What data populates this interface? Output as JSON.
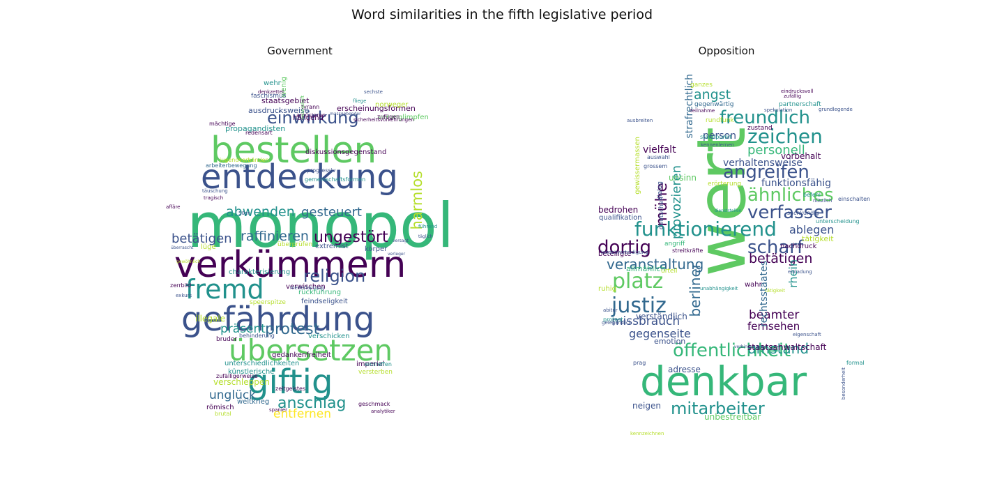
{
  "figure_title": "Word similarities in the fifth legislative period",
  "palette": {
    "c0": "#440154",
    "c1": "#3b528b",
    "c2": "#21918c",
    "c3": "#5ec962",
    "c4": "#fde725",
    "c5": "#31688e",
    "c6": "#35b779",
    "c7": "#b5de2b"
  },
  "chart_data": [
    {
      "type": "wordcloud",
      "title": "Government",
      "words": [
        {
          "text": "monopol",
          "c": "c6"
        },
        {
          "text": "verkümmern",
          "c": "c0"
        },
        {
          "text": "bestellen",
          "c": "c3"
        },
        {
          "text": "entdeckung",
          "c": "c1"
        },
        {
          "text": "gefährdung",
          "c": "c1"
        },
        {
          "text": "übersetzen",
          "c": "c3"
        },
        {
          "text": "giftig",
          "c": "c2"
        },
        {
          "text": "fremd",
          "c": "c2"
        },
        {
          "text": "einwirkung",
          "c": "c1"
        },
        {
          "text": "religion",
          "c": "c1"
        },
        {
          "text": "protest",
          "c": "c5"
        },
        {
          "text": "anschlag",
          "c": "c2"
        },
        {
          "text": "abwenden",
          "c": "c2"
        },
        {
          "text": "raffinieren",
          "c": "c5"
        },
        {
          "text": "ungestört",
          "c": "c0"
        },
        {
          "text": "harmlos",
          "c": "c7"
        },
        {
          "text": "gesteuert",
          "c": "c5"
        },
        {
          "text": "betätigen",
          "c": "c1"
        },
        {
          "text": "präsent",
          "c": "c2"
        },
        {
          "text": "entfernen",
          "c": "c4"
        },
        {
          "text": "unglück",
          "c": "c5"
        },
        {
          "text": "verschleppen",
          "c": "c7"
        },
        {
          "text": "staatsgebiet",
          "c": "c0"
        },
        {
          "text": "ausdrucksweise",
          "c": "c1"
        },
        {
          "text": "propagandisten",
          "c": "c2"
        },
        {
          "text": "diskussionsgegenstand",
          "c": "c0"
        },
        {
          "text": "erscheinungsformen",
          "c": "c0"
        },
        {
          "text": "charakterisierung",
          "c": "c2"
        },
        {
          "text": "gedankenfreiheit",
          "c": "c0"
        },
        {
          "text": "unterschiedlichkeiten",
          "c": "c2"
        },
        {
          "text": "künstlerische",
          "c": "c2"
        },
        {
          "text": "feindseligkeit",
          "c": "c1"
        },
        {
          "text": "rückführung",
          "c": "c6"
        },
        {
          "text": "verschicken",
          "c": "c2"
        },
        {
          "text": "imperial",
          "c": "c0"
        },
        {
          "text": "weltkrieg",
          "c": "c5"
        },
        {
          "text": "römisch",
          "c": "c0"
        },
        {
          "text": "zufälligerweise",
          "c": "c0"
        },
        {
          "text": "extremist",
          "c": "c1"
        },
        {
          "text": "körper",
          "c": "c1"
        },
        {
          "text": "verwischen",
          "c": "c0"
        },
        {
          "text": "illegale",
          "c": "c7"
        },
        {
          "text": "hängend",
          "c": "c0"
        },
        {
          "text": "norweger",
          "c": "c7"
        },
        {
          "text": "wehr",
          "c": "c2"
        },
        {
          "text": "wenig",
          "c": "c3"
        },
        {
          "text": "faschismus",
          "c": "c1"
        },
        {
          "text": "tyrann",
          "c": "c0"
        },
        {
          "text": "amüsieren",
          "c": "c0"
        },
        {
          "text": "mächtige",
          "c": "c0"
        },
        {
          "text": "redensart",
          "c": "c0"
        },
        {
          "text": "jugendverbänden",
          "c": "c7"
        },
        {
          "text": "arbeiterbewegung",
          "c": "c5"
        },
        {
          "text": "progressiv",
          "c": "c1"
        },
        {
          "text": "gemeinschaftsformen",
          "c": "c2"
        },
        {
          "text": "verunglimpfen",
          "c": "c3"
        },
        {
          "text": "zufügen",
          "c": "c0"
        },
        {
          "text": "sechste",
          "c": "c1"
        },
        {
          "text": "fliege",
          "c": "c2"
        },
        {
          "text": "massgebender",
          "c": "c1"
        },
        {
          "text": "sicherheitsvorkehrungen",
          "c": "c0"
        },
        {
          "text": "täuschung",
          "c": "c1"
        },
        {
          "text": "tragisch",
          "c": "c0"
        },
        {
          "text": "affäre",
          "c": "c0"
        },
        {
          "text": "50er",
          "c": "c1"
        },
        {
          "text": "überprüfen",
          "c": "c7"
        },
        {
          "text": "lüge",
          "c": "c7"
        },
        {
          "text": "führend",
          "c": "c2"
        },
        {
          "text": "täglich",
          "c": "c1"
        },
        {
          "text": "speerspitze",
          "c": "c7"
        },
        {
          "text": "zerrbild",
          "c": "c0"
        },
        {
          "text": "exkurs",
          "c": "c1"
        },
        {
          "text": "niederlassung",
          "c": "c1"
        },
        {
          "text": "bruder",
          "c": "c0"
        },
        {
          "text": "behinderung",
          "c": "c1"
        },
        {
          "text": "versterben",
          "c": "c7"
        },
        {
          "text": "eintreffen",
          "c": "c2"
        },
        {
          "text": "zeitgeistes",
          "c": "c0"
        },
        {
          "text": "geschmack",
          "c": "c0"
        },
        {
          "text": "analytiker",
          "c": "c0"
        },
        {
          "text": "spanier",
          "c": "c0"
        },
        {
          "text": "brutal",
          "c": "c7"
        },
        {
          "text": "denkzettel",
          "c": "c0"
        },
        {
          "text": "zwangshaft",
          "c": "c3"
        },
        {
          "text": "verleger",
          "c": "c1"
        },
        {
          "text": "überrascht",
          "c": "c1"
        },
        {
          "text": "versagt",
          "c": "c1"
        },
        {
          "text": "gewöhnlich",
          "c": "c7"
        }
      ]
    },
    {
      "type": "wordcloud",
      "title": "Opposition",
      "words": [
        {
          "text": "wert",
          "c": "c3"
        },
        {
          "text": "denkbar",
          "c": "c6"
        },
        {
          "text": "öffentlichkeit",
          "c": "c6"
        },
        {
          "text": "freundlich",
          "c": "c2"
        },
        {
          "text": "zeichen",
          "c": "c2"
        },
        {
          "text": "angreifen",
          "c": "c1"
        },
        {
          "text": "ähnliches",
          "c": "c3"
        },
        {
          "text": "verfasser",
          "c": "c1"
        },
        {
          "text": "funktionierend",
          "c": "c2"
        },
        {
          "text": "dortig",
          "c": "c0"
        },
        {
          "text": "scharf",
          "c": "c1"
        },
        {
          "text": "platz",
          "c": "c3"
        },
        {
          "text": "justiz",
          "c": "c5"
        },
        {
          "text": "mitarbeiter",
          "c": "c2"
        },
        {
          "text": "berliner",
          "c": "c5"
        },
        {
          "text": "mühe",
          "c": "c0"
        },
        {
          "text": "personell",
          "c": "c6"
        },
        {
          "text": "angst",
          "c": "c2"
        },
        {
          "text": "veranstaltung",
          "c": "c5"
        },
        {
          "text": "betätigen",
          "c": "c0"
        },
        {
          "text": "ablegen",
          "c": "c1"
        },
        {
          "text": "umstand",
          "c": "c2"
        },
        {
          "text": "missbrauch",
          "c": "c1"
        },
        {
          "text": "gegenseite",
          "c": "c1"
        },
        {
          "text": "beamter",
          "c": "c0"
        },
        {
          "text": "fernsehen",
          "c": "c0"
        },
        {
          "text": "rhein",
          "c": "c2"
        },
        {
          "text": "rechtsstaates",
          "c": "c5"
        },
        {
          "text": "provozieren",
          "c": "c2"
        },
        {
          "text": "strafrechtlich",
          "c": "c5"
        },
        {
          "text": "vielfalt",
          "c": "c0"
        },
        {
          "text": "funktionsfähig",
          "c": "c1"
        },
        {
          "text": "verhaltensweise",
          "c": "c1"
        },
        {
          "text": "vorbehalt",
          "c": "c0"
        },
        {
          "text": "person",
          "c": "c1"
        },
        {
          "text": "adresse",
          "c": "c1"
        },
        {
          "text": "neigen",
          "c": "c1"
        },
        {
          "text": "unbestreitbar",
          "c": "c3"
        },
        {
          "text": "staatsanwaltschaft",
          "c": "c0"
        },
        {
          "text": "tätigkeit",
          "c": "c7"
        },
        {
          "text": "nachdruck",
          "c": "c0"
        },
        {
          "text": "emotion",
          "c": "c1"
        },
        {
          "text": "verständlich",
          "c": "c1"
        },
        {
          "text": "allmählich",
          "c": "c6"
        },
        {
          "text": "bedrohen",
          "c": "c0"
        },
        {
          "text": "qualifikation",
          "c": "c1"
        },
        {
          "text": "beteiligte",
          "c": "c0"
        },
        {
          "text": "gewissermassen",
          "c": "c7"
        },
        {
          "text": "unsinn",
          "c": "c3"
        },
        {
          "text": "erörterung",
          "c": "c7"
        },
        {
          "text": "dialog",
          "c": "c1"
        },
        {
          "text": "deutschen",
          "c": "c1"
        },
        {
          "text": "urteil",
          "c": "c7"
        },
        {
          "text": "angriff",
          "c": "c6"
        },
        {
          "text": "streitkräfte",
          "c": "c0"
        },
        {
          "text": "ruhig",
          "c": "c7"
        },
        {
          "text": "protest",
          "c": "c2"
        },
        {
          "text": "ganzes",
          "c": "c7"
        },
        {
          "text": "gegenwärtig",
          "c": "c5"
        },
        {
          "text": "partnerschaft",
          "c": "c2"
        },
        {
          "text": "zustand",
          "c": "c0"
        },
        {
          "text": "rundfunk",
          "c": "c7"
        },
        {
          "text": "standpunkt",
          "c": "c2"
        },
        {
          "text": "auswahl",
          "c": "c1"
        },
        {
          "text": "grossem",
          "c": "c1"
        },
        {
          "text": "befehl",
          "c": "c2"
        },
        {
          "text": "einschalten",
          "c": "c1"
        },
        {
          "text": "nützlich",
          "c": "c1"
        },
        {
          "text": "sachkundig",
          "c": "c1"
        },
        {
          "text": "unterscheidung",
          "c": "c2"
        },
        {
          "text": "einladung",
          "c": "c1"
        },
        {
          "text": "wahr",
          "c": "c0"
        },
        {
          "text": "prag",
          "c": "c1"
        },
        {
          "text": "formal",
          "c": "c2"
        },
        {
          "text": "eindrucksvoll",
          "c": "c0"
        },
        {
          "text": "zufällig",
          "c": "c0"
        },
        {
          "text": "spekulation",
          "c": "c1"
        },
        {
          "text": "grundlegende",
          "c": "c1"
        },
        {
          "text": "kennenlernen",
          "c": "c1"
        },
        {
          "text": "ausbreiten",
          "c": "c1"
        },
        {
          "text": "teilnahme",
          "c": "c0"
        },
        {
          "text": "tätigkeit",
          "c": "c7"
        },
        {
          "text": "abitur",
          "c": "c1"
        },
        {
          "text": "gelegentlich",
          "c": "c1"
        },
        {
          "text": "eigenschaft",
          "c": "c1"
        },
        {
          "text": "unabhängigkeit",
          "c": "c2"
        },
        {
          "text": "verbindung",
          "c": "c1"
        },
        {
          "text": "dienststellen",
          "c": "c2"
        },
        {
          "text": "kennzeichnen",
          "c": "c7"
        },
        {
          "text": "besonderheit",
          "c": "c1"
        },
        {
          "text": "landesverteidigung",
          "c": "c1"
        }
      ]
    }
  ]
}
